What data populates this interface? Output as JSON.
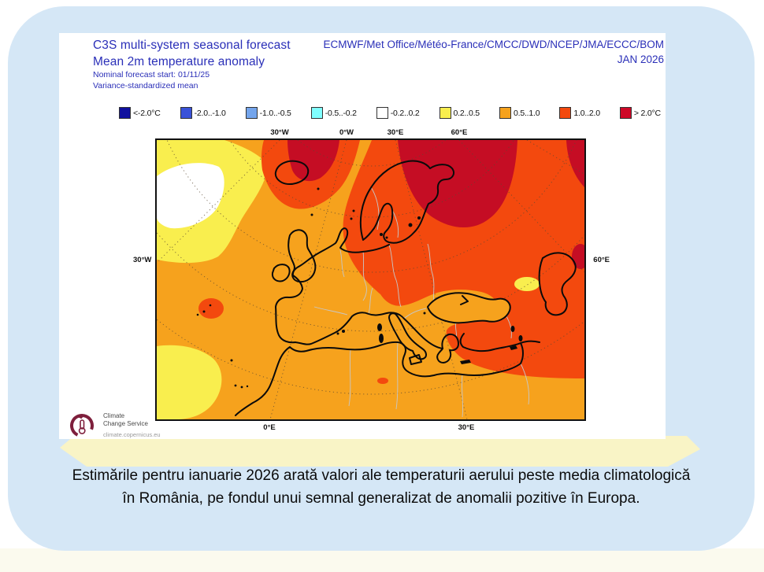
{
  "header": {
    "title1": "C3S multi-system seasonal forecast",
    "title2": "Mean 2m temperature anomaly",
    "sub1": "Nominal forecast start: 01/11/25",
    "sub2": "Variance-standardized mean",
    "models": "ECMWF/Met Office/Météo-France/CMCC/DWD/NCEP/JMA/ECCC/BOM",
    "month": "JAN 2026",
    "text_color": "#2A2FB8"
  },
  "legend": {
    "items": [
      {
        "label": "<-2.0°C",
        "color": "#10109E"
      },
      {
        "label": "-2.0..-1.0",
        "color": "#3A52D8"
      },
      {
        "label": "-1.0..-0.5",
        "color": "#74A5EC"
      },
      {
        "label": "-0.5..-0.2",
        "color": "#80FFFF"
      },
      {
        "label": "-0.2..0.2",
        "color": "#FFFFFF"
      },
      {
        "label": "0.2..0.5",
        "color": "#F9EE4E"
      },
      {
        "label": "0.5..1.0",
        "color": "#F6A21D"
      },
      {
        "label": "1.0..2.0",
        "color": "#F3490E"
      },
      {
        "label": "> 2.0°C",
        "color": "#CE0827"
      }
    ]
  },
  "palette": {
    "white_bin": "#FFFFFF",
    "yellow": "#F9EE4E",
    "orange": "#F6A21D",
    "red": "#F3490E",
    "darkred": "#C50D24"
  },
  "map": {
    "top_labels": [
      "30°W",
      "0°W",
      "30°E",
      "60°E"
    ],
    "left_label": "30°W",
    "right_label": "60°E",
    "bottom_labels": [
      "0°E",
      "30°E"
    ]
  },
  "logo": {
    "line1": "Climate",
    "line2": "Change Service",
    "url": "climate.copernicus.eu"
  },
  "caption": {
    "text": "Estimările pentru ianuarie 2026 arată valori ale temperaturii aerului peste media climatologică în România, pe fondul unui semnal generalizat de anomalii pozitive în Europa."
  },
  "chart_data": {
    "type": "heatmap",
    "title": "C3S multi-system seasonal forecast — Mean 2m temperature anomaly",
    "forecast_start": "01/11/25",
    "statistic": "Variance-standardized mean",
    "valid_month": "JAN 2026",
    "systems": [
      "ECMWF",
      "Met Office",
      "Météo-France",
      "CMCC",
      "DWD",
      "NCEP",
      "JMA",
      "ECCC",
      "BOM"
    ],
    "unit": "°C anomaly",
    "bins": [
      "<-2.0",
      "-2.0..-1.0",
      "-1.0..-0.5",
      "-0.5..-0.2",
      "-0.2..0.2",
      "0.2..0.5",
      "0.5..1.0",
      "1.0..2.0",
      "> 2.0"
    ],
    "region_values": [
      {
        "region": "Mid-North Atlantic (SW of Iceland)",
        "anomaly_bin": "-0.2..0.2"
      },
      {
        "region": "NE Atlantic ring around neutral patch",
        "anomaly_bin": "0.2..0.5"
      },
      {
        "region": "UK, Ireland, Iberia, W Mediterranean, North Africa, Balkans S, Black Sea",
        "anomaly_bin": "0.5..1.0"
      },
      {
        "region": "Central & Eastern Europe incl. România, France E, Italy N, E Europe, Anatolia E, Russia W",
        "anomaly_bin": "1.0..2.0"
      },
      {
        "region": "N Scandinavia, Finland, Baltic N, NW Russia, area N of Iceland",
        "anomaly_bin": "> 2.0"
      },
      {
        "region": "SW Morocco / Canary sector",
        "anomaly_bin": "0.2..0.5"
      },
      {
        "region": "Small patch W of Caspian Sea",
        "anomaly_bin": "0.5..1.0"
      }
    ],
    "legend_position": "top",
    "graticule": "dotted, 30° meridians/parallels, polar-type projection"
  }
}
